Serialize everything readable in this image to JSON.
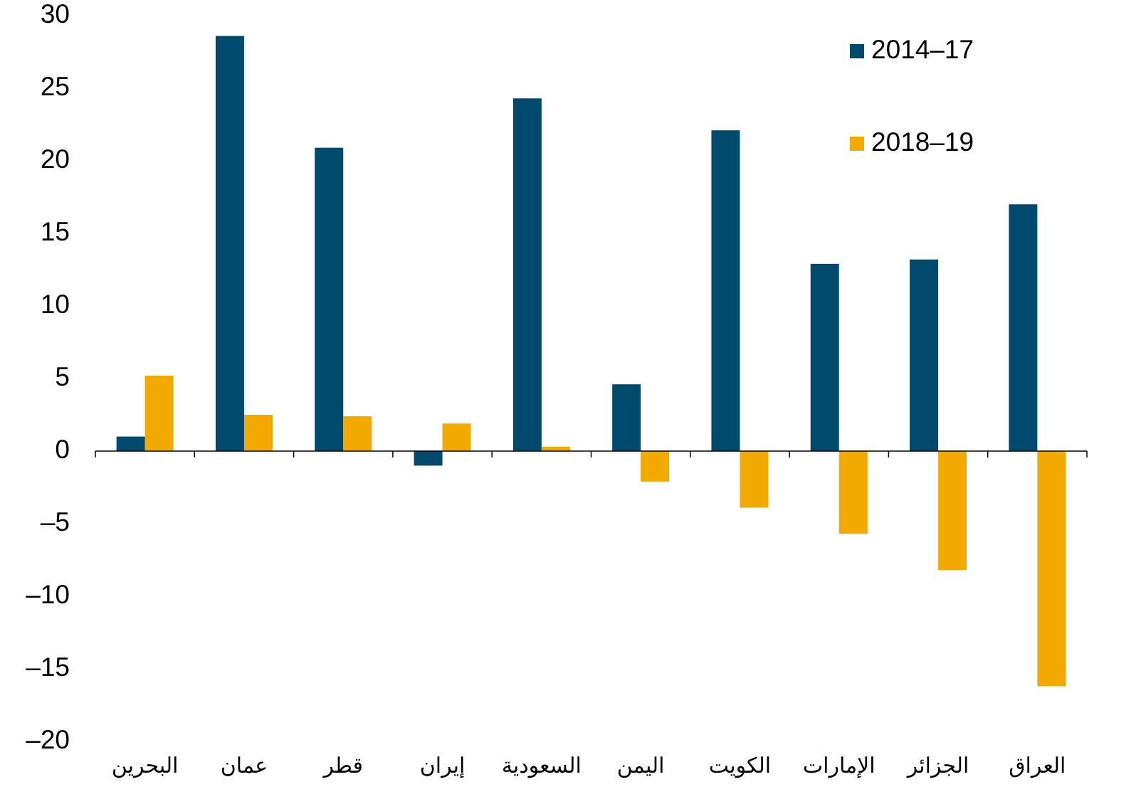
{
  "chart_data": {
    "type": "bar",
    "categories": [
      "البحرين",
      "عمان",
      "قطر",
      "إيران",
      "السعودية",
      "اليمن",
      "الكويت",
      "الإمارات",
      "الجزائر",
      "العراق"
    ],
    "series": [
      {
        "name": "2014–17",
        "color": "#004a6e",
        "values": [
          1.0,
          28.6,
          20.9,
          -1.0,
          24.3,
          4.6,
          22.1,
          12.9,
          13.2,
          17.0
        ]
      },
      {
        "name": "2018–19",
        "color": "#f2aa00",
        "values": [
          5.2,
          2.5,
          2.4,
          1.9,
          0.3,
          -2.1,
          -3.9,
          -5.7,
          -8.2,
          -16.2
        ]
      }
    ],
    "ylim": [
      -20,
      30
    ],
    "yticks": [
      {
        "value": -20,
        "label": "–20"
      },
      {
        "value": -15,
        "label": "–15"
      },
      {
        "value": -10,
        "label": "–10"
      },
      {
        "value": -5,
        "label": "–5"
      },
      0,
      5,
      10,
      15,
      20,
      25,
      30
    ],
    "grid": false,
    "legend": "top-right"
  }
}
